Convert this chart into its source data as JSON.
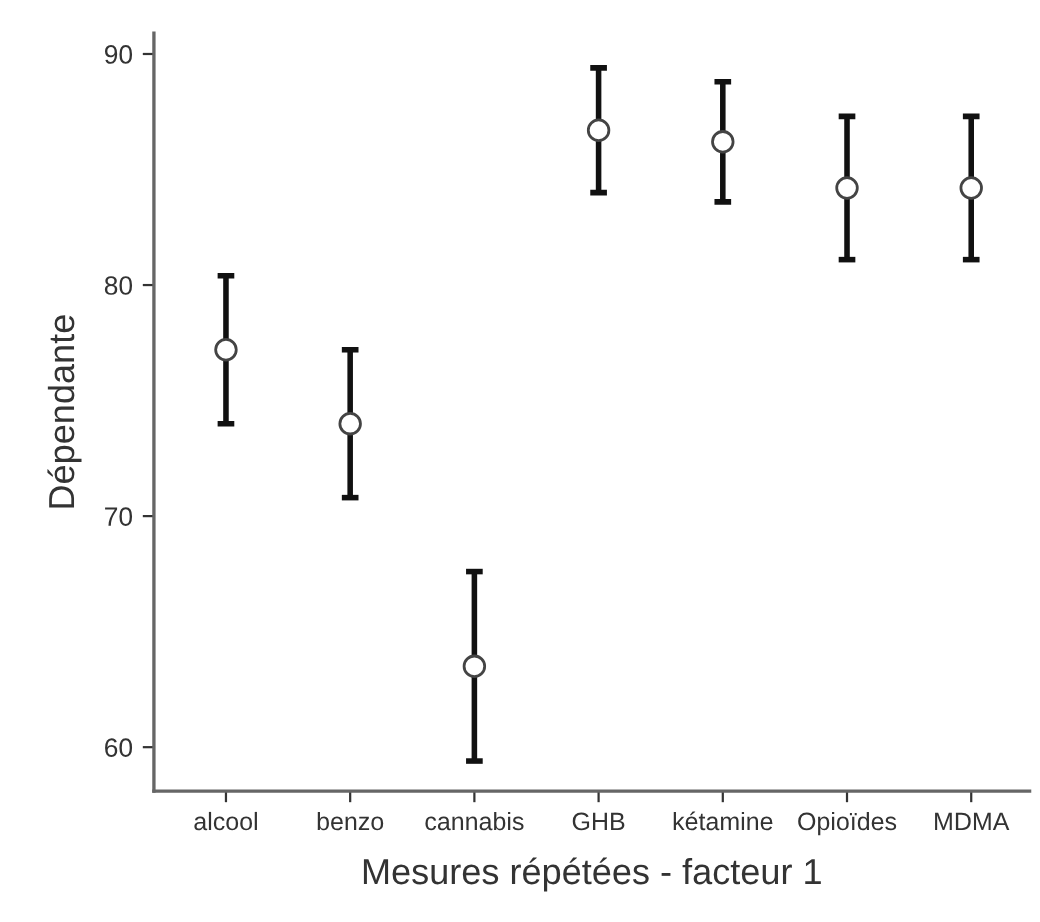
{
  "chart_data": {
    "type": "scatter",
    "xlabel": "Mesures répétées - facteur 1",
    "ylabel": "Dépendante",
    "categories": [
      "alcool",
      "benzo",
      "cannabis",
      "GHB",
      "kétamine",
      "Opioïdes",
      "MDMA"
    ],
    "values": [
      77.2,
      74.0,
      63.5,
      86.7,
      86.2,
      84.2,
      84.2
    ],
    "errors": [
      3.2,
      3.2,
      4.1,
      2.7,
      2.6,
      3.1,
      3.1
    ],
    "color": "#ffffff",
    "ylim": [
      58.1,
      90.9
    ],
    "yticks": [
      60,
      70,
      80,
      90
    ],
    "marker": "circle",
    "grid": false,
    "legend": false
  }
}
